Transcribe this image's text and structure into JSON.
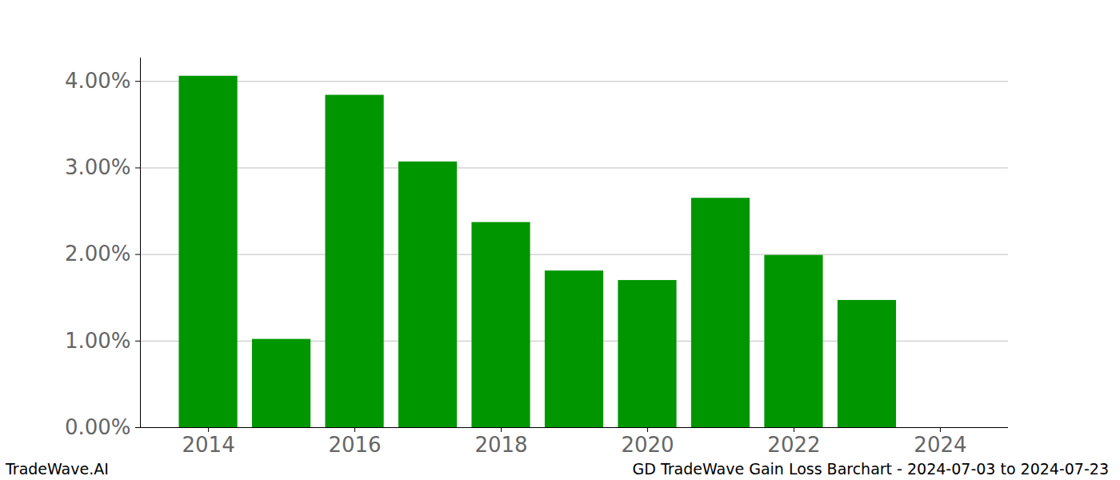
{
  "chart_data": {
    "type": "bar",
    "title": "GD TradeWave Gain Loss Barchart - 2024-07-03 to 2024-07-23",
    "caption": "TradeWave.AI",
    "x": [
      2014,
      2015,
      2016,
      2017,
      2018,
      2019,
      2020,
      2021,
      2022,
      2023
    ],
    "values": [
      4.06,
      1.02,
      3.84,
      3.07,
      2.37,
      1.81,
      1.7,
      2.65,
      1.99,
      1.47
    ],
    "color": "#009600",
    "xlim": [
      2013.07,
      2024.93
    ],
    "xticks": [
      2014,
      2016,
      2018,
      2020,
      2022,
      2024
    ],
    "ylim": [
      0,
      4.27
    ],
    "yticks": [
      {
        "value": 0,
        "label": "0.00%"
      },
      {
        "value": 1,
        "label": "1.00%"
      },
      {
        "value": 2,
        "label": "2.00%"
      },
      {
        "value": 3,
        "label": "3.00%"
      },
      {
        "value": 4,
        "label": "4.00%"
      }
    ],
    "grid": true
  }
}
